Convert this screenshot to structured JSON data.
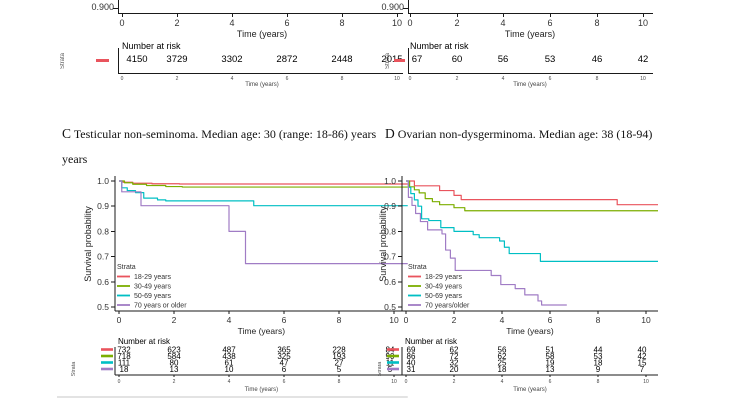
{
  "accent_colors": {
    "red": "#e9545d",
    "green": "#7cae00",
    "cyan": "#00bfc4",
    "purple": "#a07cc5"
  },
  "top_left_panel": {
    "ytick_label": "0.900",
    "xticks": [
      "0",
      "2",
      "4",
      "6",
      "8",
      "10"
    ],
    "xlabel": "Time (years)",
    "risk_title": "Number at risk",
    "strata_label": "Strata",
    "risk_values": [
      "4150",
      "3729",
      "3302",
      "2872",
      "2448",
      "2015"
    ],
    "mini_xticks": [
      "0",
      "2",
      "4",
      "6",
      "8",
      "10"
    ],
    "mini_xlabel": "Time (years)"
  },
  "top_right_panel": {
    "ytick_label": "0.900",
    "xticks": [
      "0",
      "2",
      "4",
      "6",
      "8",
      "10"
    ],
    "xlabel": "Time (years)",
    "risk_title": "Number at risk",
    "strata_label": "Strata",
    "risk_values": [
      "67",
      "60",
      "56",
      "53",
      "46",
      "42"
    ],
    "mini_xticks": [
      "0",
      "2",
      "4",
      "6",
      "8",
      "10"
    ],
    "mini_xlabel": "Time (years)"
  },
  "captions": {
    "c_letter": "C",
    "c_text": "Testicular non-seminoma. Median age: 30 (range: 18-86) years",
    "c_line2": "years",
    "d_letter": "D",
    "d_text": "Ovarian non-dysgerminoma. Median age: 38 (18-94)"
  },
  "chart_data": [
    {
      "id": "panel_c",
      "type": "line",
      "variant": "kaplan_meier_step",
      "panel_label": "C",
      "title": "Testicular non-seminoma. Median age: 30 (range: 18-86) years",
      "xlabel": "Time (years)",
      "ylabel": "Survival probability",
      "xlim": [
        0,
        10.5
      ],
      "ylim": [
        0.5,
        1.0
      ],
      "xticks": [
        0,
        2,
        4,
        6,
        8,
        10
      ],
      "yticks": [
        "1.0",
        "0.9",
        "0.8",
        "0.7",
        "0.6",
        "0.5"
      ],
      "grid": false,
      "legend_title": "Strata",
      "legend_position": "inside-bottom-left",
      "series": [
        {
          "name": "18-29 years",
          "color": "#e9545d",
          "points": [
            [
              0,
              1.0
            ],
            [
              0.15,
              0.995
            ],
            [
              0.5,
              0.991
            ],
            [
              1.2,
              0.989
            ],
            [
              2.2,
              0.988
            ],
            [
              10.5,
              0.988
            ]
          ]
        },
        {
          "name": "30-49 years",
          "color": "#7cae00",
          "points": [
            [
              0,
              1.0
            ],
            [
              0.2,
              0.993
            ],
            [
              0.5,
              0.987
            ],
            [
              1.0,
              0.982
            ],
            [
              1.7,
              0.978
            ],
            [
              2.3,
              0.976
            ],
            [
              10.5,
              0.976
            ]
          ]
        },
        {
          "name": "50-69 years",
          "color": "#00bfc4",
          "points": [
            [
              0,
              1.0
            ],
            [
              0.1,
              0.973
            ],
            [
              0.3,
              0.962
            ],
            [
              0.6,
              0.954
            ],
            [
              0.9,
              0.932
            ],
            [
              1.4,
              0.925
            ],
            [
              1.7,
              0.921
            ],
            [
              4.9,
              0.902
            ],
            [
              10.5,
              0.902
            ]
          ]
        },
        {
          "name": "70 years or older",
          "color": "#a07cc5",
          "points": [
            [
              0,
              1.0
            ],
            [
              0.1,
              0.957
            ],
            [
              0.8,
              0.902
            ],
            [
              4.0,
              0.8
            ],
            [
              4.6,
              0.672
            ],
            [
              10.5,
              0.672
            ]
          ]
        }
      ],
      "risk_table": {
        "title": "Number at risk",
        "strata_label": "Strata",
        "xlabel": "Time (years)",
        "times": [
          0,
          2,
          4,
          6,
          8,
          10
        ],
        "rows": [
          {
            "name": "18-29 years",
            "color": "#e9545d",
            "values": [
              "732",
              "623",
              "487",
              "365",
              "228",
              "84"
            ]
          },
          {
            "name": "30-49 years",
            "color": "#7cae00",
            "values": [
              "718",
              "584",
              "438",
              "325",
              "193",
              "90"
            ]
          },
          {
            "name": "50-69 years",
            "color": "#00bfc4",
            "values": [
              "111",
              "80",
              "61",
              "47",
              "27",
              "11"
            ]
          },
          {
            "name": "70 years or older",
            "color": "#a07cc5",
            "values": [
              "18",
              "13",
              "10",
              "6",
              "5",
              "5"
            ]
          }
        ]
      }
    },
    {
      "id": "panel_d",
      "type": "line",
      "variant": "kaplan_meier_step",
      "panel_label": "D",
      "title": "Ovarian non-dysgerminoma. Median age: 38 (18-94)",
      "xlabel": "Time (years)",
      "ylabel": "Survival probability",
      "xlim": [
        0,
        10.5
      ],
      "ylim": [
        0.5,
        1.0
      ],
      "xticks": [
        0,
        2,
        4,
        6,
        8,
        10
      ],
      "yticks": [
        "1.0",
        "0.9",
        "0.8",
        "0.7",
        "0.6",
        "0.5"
      ],
      "grid": false,
      "legend_title": "Strata",
      "legend_position": "inside-bottom-left",
      "series": [
        {
          "name": "18-29 years",
          "color": "#e9545d",
          "points": [
            [
              0,
              1.0
            ],
            [
              0.35,
              0.981
            ],
            [
              1.4,
              0.962
            ],
            [
              2.0,
              0.943
            ],
            [
              2.3,
              0.926
            ],
            [
              8.8,
              0.906
            ],
            [
              10.5,
              0.906
            ]
          ]
        },
        {
          "name": "30-49 years",
          "color": "#7cae00",
          "points": [
            [
              0,
              1.0
            ],
            [
              0.15,
              0.977
            ],
            [
              0.35,
              0.965
            ],
            [
              0.55,
              0.953
            ],
            [
              0.8,
              0.93
            ],
            [
              1.1,
              0.918
            ],
            [
              1.4,
              0.906
            ],
            [
              2.0,
              0.894
            ],
            [
              2.45,
              0.882
            ],
            [
              10.5,
              0.882
            ]
          ]
        },
        {
          "name": "50-69 years",
          "color": "#00bfc4",
          "points": [
            [
              0,
              1.0
            ],
            [
              0.1,
              0.975
            ],
            [
              0.2,
              0.95
            ],
            [
              0.35,
              0.925
            ],
            [
              0.5,
              0.9
            ],
            [
              0.65,
              0.85
            ],
            [
              0.95,
              0.843
            ],
            [
              1.45,
              0.815
            ],
            [
              2.0,
              0.8
            ],
            [
              2.8,
              0.787
            ],
            [
              3.05,
              0.775
            ],
            [
              3.9,
              0.762
            ],
            [
              4.1,
              0.737
            ],
            [
              4.3,
              0.712
            ],
            [
              5.6,
              0.681
            ],
            [
              10.5,
              0.681
            ]
          ]
        },
        {
          "name": "70 years/older",
          "color": "#a07cc5",
          "points": [
            [
              0,
              1.0
            ],
            [
              0.1,
              0.935
            ],
            [
              0.25,
              0.903
            ],
            [
              0.4,
              0.871
            ],
            [
              0.6,
              0.839
            ],
            [
              0.9,
              0.806
            ],
            [
              1.5,
              0.79
            ],
            [
              1.65,
              0.726
            ],
            [
              1.85,
              0.694
            ],
            [
              2.05,
              0.645
            ],
            [
              3.55,
              0.625
            ],
            [
              3.95,
              0.589
            ],
            [
              4.55,
              0.573
            ],
            [
              4.95,
              0.548
            ],
            [
              5.5,
              0.524
            ],
            [
              5.65,
              0.508
            ],
            [
              6.7,
              0.508
            ]
          ]
        }
      ],
      "risk_table": {
        "title": "Number at risk",
        "strata_label": "Strata",
        "xlabel": "Time (years)",
        "times": [
          0,
          2,
          4,
          6,
          8,
          10
        ],
        "rows": [
          {
            "name": "18-29 years",
            "color": "#e9545d",
            "values": [
              "69",
              "62",
              "56",
              "51",
              "44",
              "40"
            ]
          },
          {
            "name": "30-49 years",
            "color": "#7cae00",
            "values": [
              "86",
              "72",
              "62",
              "58",
              "53",
              "42"
            ]
          },
          {
            "name": "50-69 years",
            "color": "#00bfc4",
            "values": [
              "40",
              "32",
              "25",
              "19",
              "18",
              "15"
            ]
          },
          {
            "name": "70 years/older",
            "color": "#a07cc5",
            "values": [
              "31",
              "20",
              "18",
              "13",
              "9",
              "7"
            ]
          }
        ]
      }
    }
  ]
}
